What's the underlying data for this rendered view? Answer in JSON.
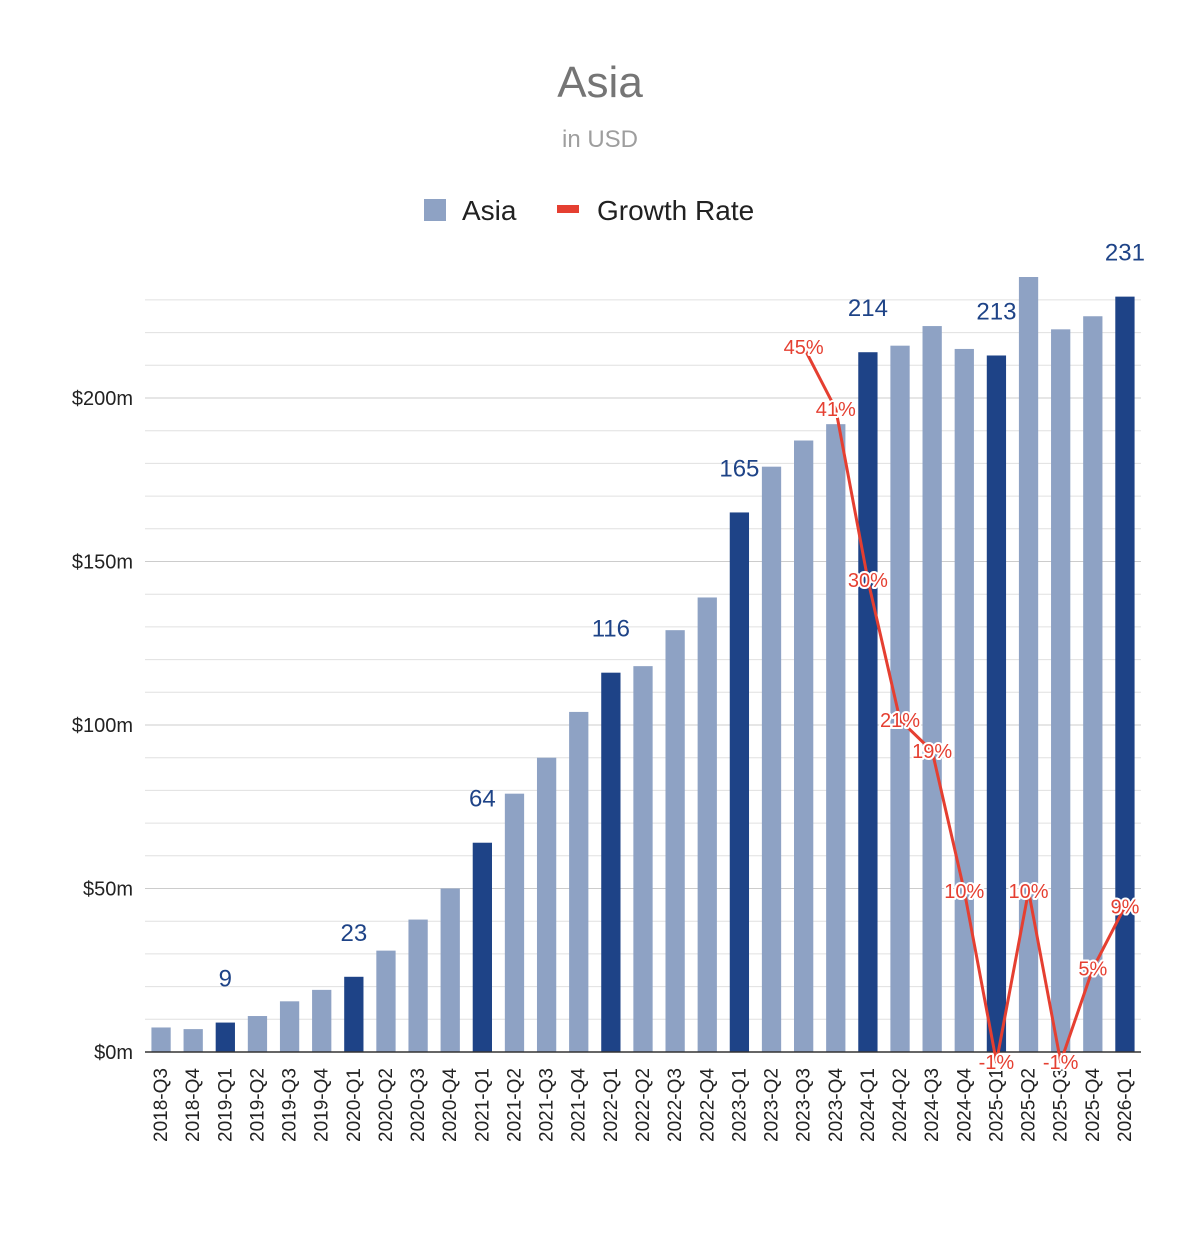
{
  "chart_data": {
    "type": "bar",
    "title": "Asia",
    "subtitle": "in USD",
    "legend": [
      {
        "name": "Asia",
        "color": "#8ea2c4",
        "kind": "bar"
      },
      {
        "name": "Growth Rate",
        "color": "#e53f31",
        "kind": "line"
      }
    ],
    "legend_position": "top-center",
    "categories": [
      "2018-Q3",
      "2018-Q4",
      "2019-Q1",
      "2019-Q2",
      "2019-Q3",
      "2019-Q4",
      "2020-Q1",
      "2020-Q2",
      "2020-Q3",
      "2020-Q4",
      "2021-Q1",
      "2021-Q2",
      "2021-Q3",
      "2021-Q4",
      "2022-Q1",
      "2022-Q2",
      "2022-Q3",
      "2022-Q4",
      "2023-Q1",
      "2023-Q2",
      "2023-Q3",
      "2023-Q4",
      "2024-Q1",
      "2024-Q2",
      "2024-Q3",
      "2024-Q4",
      "2025-Q1",
      "2025-Q2",
      "2025-Q3",
      "2025-Q4",
      "2026-Q1"
    ],
    "series": [
      {
        "name": "Asia",
        "unit": "$m",
        "values": [
          7.5,
          7,
          9,
          11,
          15.5,
          19,
          23,
          31,
          40.5,
          50,
          64,
          79,
          90,
          104,
          116,
          118,
          129,
          139,
          165,
          179,
          187,
          192,
          214,
          216,
          222,
          215,
          213,
          237,
          221,
          225,
          231
        ],
        "highlighted": [
          false,
          false,
          true,
          false,
          false,
          false,
          true,
          false,
          false,
          false,
          true,
          false,
          false,
          false,
          true,
          false,
          false,
          false,
          true,
          false,
          false,
          false,
          true,
          false,
          false,
          false,
          true,
          false,
          false,
          false,
          true
        ],
        "labels": [
          "",
          "",
          "9",
          "",
          "",
          "",
          "23",
          "",
          "",
          "",
          "64",
          "",
          "",
          "",
          "116",
          "",
          "",
          "",
          "165",
          "",
          "",
          "",
          "214",
          "",
          "",
          "",
          "213",
          "",
          "",
          "",
          "231"
        ]
      },
      {
        "name": "Growth Rate",
        "unit": "%",
        "values": [
          null,
          null,
          null,
          null,
          null,
          null,
          null,
          null,
          null,
          null,
          null,
          null,
          null,
          null,
          null,
          null,
          null,
          null,
          null,
          null,
          45,
          41,
          30,
          21,
          19,
          10,
          -1,
          10,
          -1,
          5,
          9
        ],
        "labels": [
          "",
          "",
          "",
          "",
          "",
          "",
          "",
          "",
          "",
          "",
          "",
          "",
          "",
          "",
          "",
          "",
          "",
          "",
          "",
          "",
          "45%",
          "41%",
          "30%",
          "21%",
          "19%",
          "10%",
          "-1%",
          "10%",
          "-1%",
          "5%",
          "9%"
        ]
      }
    ],
    "yticks": [
      "$0m",
      "$50m",
      "$100m",
      "$150m",
      "$200m"
    ],
    "ytick_values": [
      0,
      50,
      100,
      150,
      200
    ],
    "ylim": [
      0,
      250
    ],
    "growth_rate_range": [
      -1,
      45
    ],
    "grid": true,
    "colors": {
      "bar": "#8ea2c4",
      "bar_highlight": "#1e4387",
      "line": "#e53f31",
      "grid": "#e0e0e0"
    }
  }
}
